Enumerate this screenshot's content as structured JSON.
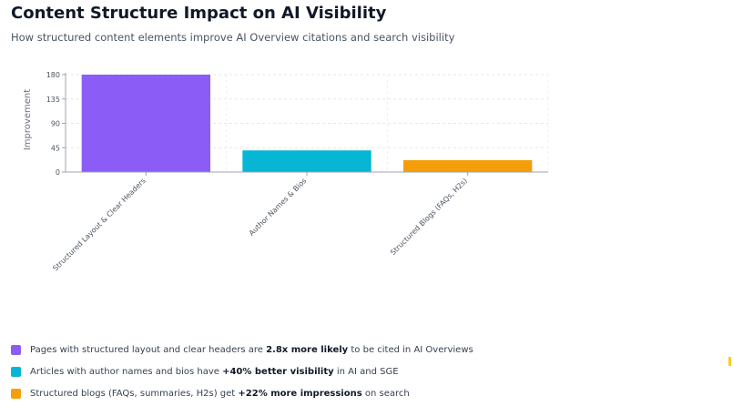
{
  "header": {
    "title": "Content Structure Impact on AI Visibility",
    "subtitle": "How structured content elements improve AI Overview citations and search visibility"
  },
  "chart_data": {
    "type": "bar",
    "categories": [
      "Structured Layout & Clear Headers",
      "Author Names & Bios",
      "Structured Blogs (FAQs, H2s)"
    ],
    "values": [
      180,
      40,
      22
    ],
    "colors": [
      "#8b5cf6",
      "#06b6d4",
      "#f59e0b"
    ],
    "ylabel": "Improvement",
    "yticks": [
      0,
      45,
      90,
      135,
      180
    ],
    "ylim": [
      0,
      180
    ],
    "grid": true
  },
  "legend": [
    {
      "before": "Pages with structured layout and clear headers are ",
      "bold": "2.8x more likely",
      "after": " to be cited in AI Overviews",
      "color": "#8b5cf6"
    },
    {
      "before": "Articles with author names and bios have ",
      "bold": "+40% better visibility",
      "after": " in AI and SGE",
      "color": "#06b6d4"
    },
    {
      "before": "Structured blogs (FAQs, summaries, H2s) get ",
      "bold": "+22% more impressions",
      "after": " on search",
      "color": "#f59e0b"
    }
  ]
}
